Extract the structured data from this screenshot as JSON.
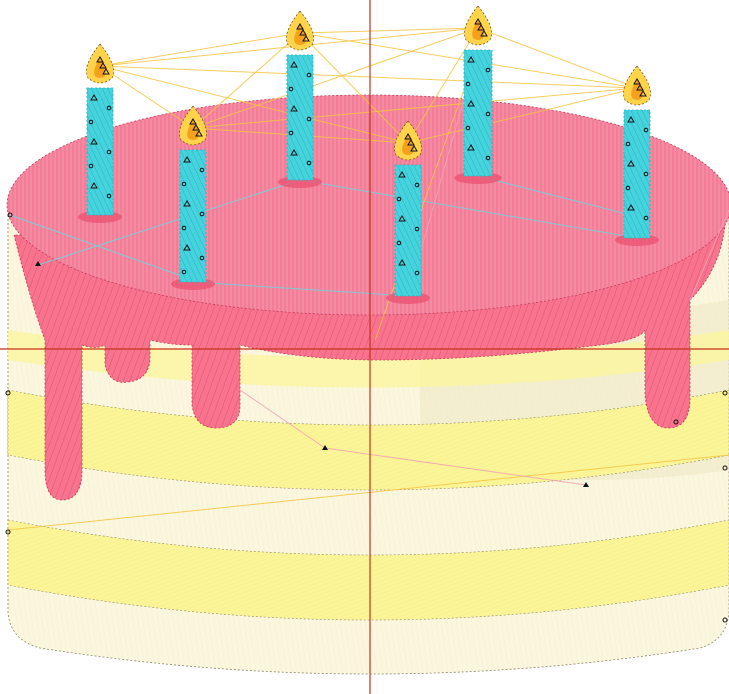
{
  "scene": {
    "subject": "cake-embroidery-pattern",
    "candle_count": 6,
    "cake_stripe_count": 3,
    "icing_drip_count": 5
  },
  "colors": {
    "background": "#ffffff",
    "cream": "#fbf6de",
    "cream_shadow": "#efe8c4",
    "stripe_yellow": "#fbf59a",
    "icing_pink": "#f7738e",
    "icing_pink_dark": "#e9506f",
    "candle_cyan": "#46d3dd",
    "candle_cyan_dark": "#1fb7c4",
    "flame_yellow": "#ffd34a",
    "flame_orange": "#f4a21b",
    "guide_red": "#c8321a",
    "travel_yellow": "#f5c542",
    "travel_cyan": "#6fd6e0",
    "travel_pink": "#f3a1b4",
    "marker_black": "#111111"
  },
  "guides": {
    "vertical": true,
    "horizontal": true
  }
}
